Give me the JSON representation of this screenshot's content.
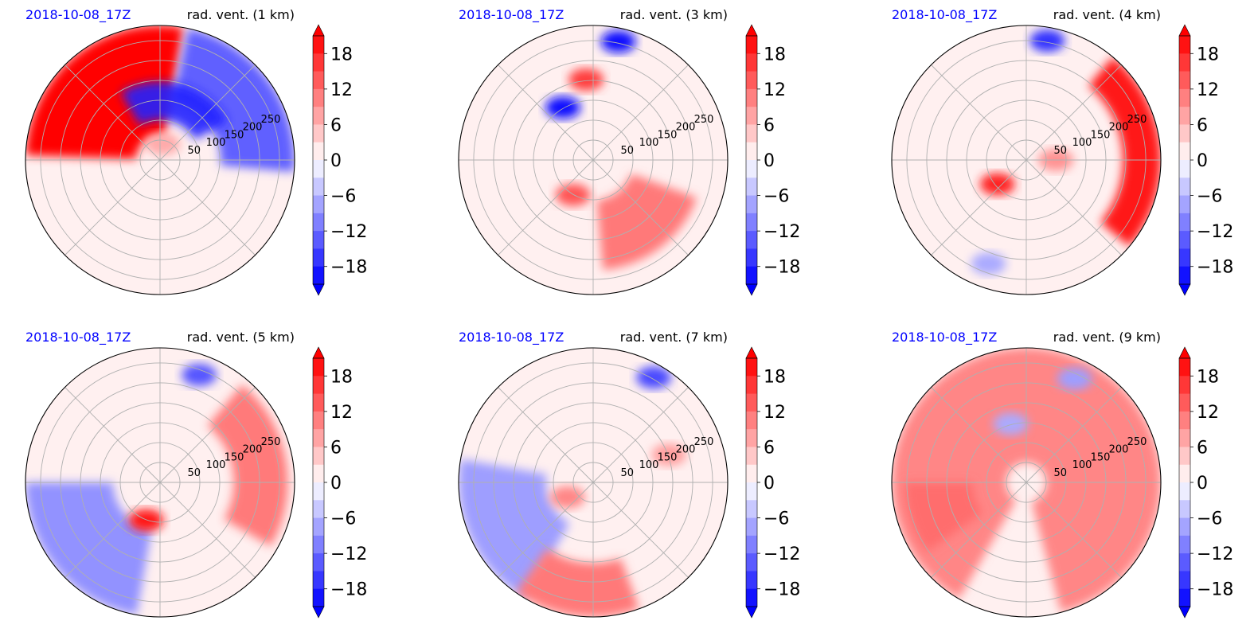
{
  "colors": {
    "timestamp": "#0000ff",
    "positive_max": "#ff0000",
    "negative_max": "#0000ff",
    "neutral": "#ffffff",
    "grid": "#b0b0b0"
  },
  "chart_data": [
    {
      "type": "heatmap",
      "projection": "polar",
      "timestamp": "2018-10-08_17Z",
      "title": "rad. vent. (1 km)",
      "radial_ticks": [
        "50",
        "100",
        "150",
        "200",
        "250"
      ],
      "colorbar": {
        "ticks": [
          "18",
          "12",
          "6",
          "0",
          "−6",
          "−12",
          "−18"
        ],
        "range": [
          -21,
          21
        ],
        "extend": "both",
        "cmap": "bwr"
      },
      "features": [
        {
          "sign": "pos",
          "shape": "wedge",
          "r": [
            0.18,
            1.0
          ],
          "theta": [
            -88,
            10
          ],
          "value": 21
        },
        {
          "sign": "neg",
          "shape": "wedge",
          "r": [
            0.45,
            1.0
          ],
          "theta": [
            12,
            95
          ],
          "value": -13
        },
        {
          "sign": "neg",
          "shape": "band",
          "r": [
            0.3,
            0.58
          ],
          "theta": [
            -30,
            60
          ],
          "value": -18
        },
        {
          "sign": "pos",
          "shape": "blob",
          "r": 0.12,
          "theta": 10,
          "value": 7
        }
      ]
    },
    {
      "type": "heatmap",
      "projection": "polar",
      "timestamp": "2018-10-08_17Z",
      "title": "rad. vent. (3 km)",
      "radial_ticks": [
        "50",
        "100",
        "150",
        "200",
        "250"
      ],
      "colorbar": {
        "ticks": [
          "18",
          "12",
          "6",
          "0",
          "−6",
          "−12",
          "−18"
        ],
        "range": [
          -21,
          21
        ],
        "extend": "both",
        "cmap": "bwr"
      },
      "features": [
        {
          "sign": "pos",
          "shape": "wedge",
          "r": [
            0.3,
            0.82
          ],
          "theta": [
            110,
            175
          ],
          "value": 11
        },
        {
          "sign": "pos",
          "shape": "blob",
          "r": 0.3,
          "theta": -150,
          "value": 14
        },
        {
          "sign": "neg",
          "shape": "blob",
          "r": 0.45,
          "theta": -30,
          "value": -20
        },
        {
          "sign": "neg",
          "shape": "blob",
          "r": 0.9,
          "theta": 12,
          "value": -20
        },
        {
          "sign": "pos",
          "shape": "blob",
          "r": 0.6,
          "theta": -5,
          "value": 16
        }
      ]
    },
    {
      "type": "heatmap",
      "projection": "polar",
      "timestamp": "2018-10-08_17Z",
      "title": "rad. vent. (4 km)",
      "radial_ticks": [
        "50",
        "100",
        "150",
        "200",
        "250"
      ],
      "colorbar": {
        "ticks": [
          "18",
          "12",
          "6",
          "0",
          "−6",
          "−12",
          "−18"
        ],
        "range": [
          -21,
          21
        ],
        "extend": "both",
        "cmap": "bwr"
      },
      "features": [
        {
          "sign": "pos",
          "shape": "band",
          "r": [
            0.72,
            1.0
          ],
          "theta": [
            40,
            130
          ],
          "value": 21
        },
        {
          "sign": "pos",
          "shape": "blob",
          "r": 0.28,
          "theta": -130,
          "value": 18
        },
        {
          "sign": "pos",
          "shape": "blob",
          "r": 0.22,
          "theta": 90,
          "value": 9
        },
        {
          "sign": "neg",
          "shape": "blob",
          "r": 0.82,
          "theta": -160,
          "value": -7
        },
        {
          "sign": "neg",
          "shape": "blob",
          "r": 0.9,
          "theta": 10,
          "value": -17
        }
      ]
    },
    {
      "type": "heatmap",
      "projection": "polar",
      "timestamp": "2018-10-08_17Z",
      "title": "rad. vent. (5 km)",
      "radial_ticks": [
        "50",
        "100",
        "150",
        "200",
        "250"
      ],
      "colorbar": {
        "ticks": [
          "18",
          "12",
          "6",
          "0",
          "−6",
          "−12",
          "−18"
        ],
        "range": [
          -21,
          21
        ],
        "extend": "both",
        "cmap": "bwr"
      },
      "features": [
        {
          "sign": "neg",
          "shape": "wedge",
          "r": [
            0.35,
            1.0
          ],
          "theta": [
            -170,
            -90
          ],
          "value": -9
        },
        {
          "sign": "pos",
          "shape": "band",
          "r": [
            0.55,
            0.95
          ],
          "theta": [
            40,
            120
          ],
          "value": 12
        },
        {
          "sign": "pos",
          "shape": "blob",
          "r": 0.3,
          "theta": -160,
          "value": 19
        },
        {
          "sign": "neg",
          "shape": "blob",
          "r": 0.85,
          "theta": 20,
          "value": -14
        }
      ]
    },
    {
      "type": "heatmap",
      "projection": "polar",
      "timestamp": "2018-10-08_17Z",
      "title": "rad. vent. (7 km)",
      "radial_ticks": [
        "50",
        "100",
        "150",
        "200",
        "250"
      ],
      "colorbar": {
        "ticks": [
          "18",
          "12",
          "6",
          "0",
          "−6",
          "−12",
          "−18"
        ],
        "range": [
          -21,
          21
        ],
        "extend": "both",
        "cmap": "bwr"
      },
      "features": [
        {
          "sign": "neg",
          "shape": "wedge",
          "r": [
            0.35,
            1.0
          ],
          "theta": [
            -150,
            -80
          ],
          "value": -8
        },
        {
          "sign": "pos",
          "shape": "wedge",
          "r": [
            0.6,
            1.0
          ],
          "theta": [
            160,
            215
          ],
          "value": 11
        },
        {
          "sign": "pos",
          "shape": "blob",
          "r": 0.22,
          "theta": -120,
          "value": 10
        },
        {
          "sign": "neg",
          "shape": "blob",
          "r": 0.9,
          "theta": 30,
          "value": -15
        },
        {
          "sign": "pos",
          "shape": "blob",
          "r": 0.6,
          "theta": 70,
          "value": 8
        }
      ]
    },
    {
      "type": "heatmap",
      "projection": "polar",
      "timestamp": "2018-10-08_17Z",
      "title": "rad. vent. (9 km)",
      "radial_ticks": [
        "50",
        "100",
        "150",
        "200",
        "250"
      ],
      "colorbar": {
        "ticks": [
          "18",
          "12",
          "6",
          "0",
          "−6",
          "−12",
          "−18"
        ],
        "range": [
          -21,
          21
        ],
        "extend": "both",
        "cmap": "bwr"
      },
      "features": [
        {
          "sign": "pos",
          "shape": "wedge",
          "r": [
            0.15,
            1.0
          ],
          "theta": [
            -150,
            165
          ],
          "value": 10
        },
        {
          "sign": "pos",
          "shape": "wedge",
          "r": [
            0.4,
            0.9
          ],
          "theta": [
            -125,
            -90
          ],
          "value": 12
        },
        {
          "sign": "neg",
          "shape": "blob",
          "r": 0.45,
          "theta": -15,
          "value": -7
        },
        {
          "sign": "neg",
          "shape": "blob",
          "r": 0.85,
          "theta": 25,
          "value": -8
        }
      ]
    }
  ]
}
